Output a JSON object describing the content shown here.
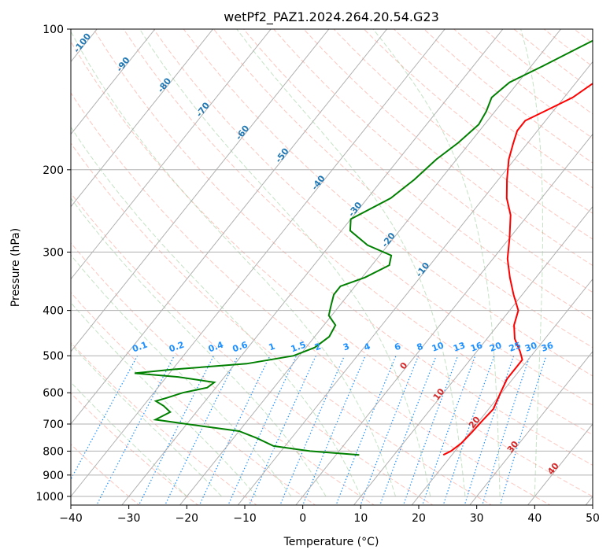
{
  "chart_data": {
    "type": "skew-t",
    "title": "wetPf2_PAZ1.2024.264.20.54.G23",
    "xlabel": "Temperature (°C)",
    "ylabel": "Pressure (hPa)",
    "xlim": [
      -40,
      50
    ],
    "ylim": [
      1050,
      100
    ],
    "y_scale": "log",
    "grid": true,
    "x_ticks": [
      -40,
      -30,
      -20,
      -10,
      0,
      10,
      20,
      30,
      40,
      50
    ],
    "x_tick_labels": [
      "−40",
      "−30",
      "−20",
      "−10",
      "0",
      "10",
      "20",
      "30",
      "40",
      "50"
    ],
    "y_ticks": [
      100,
      200,
      300,
      400,
      500,
      600,
      700,
      800,
      900,
      1000
    ],
    "y_tick_labels": [
      "100",
      "200",
      "300",
      "400",
      "500",
      "600",
      "700",
      "800",
      "900",
      "1000"
    ],
    "colors": {
      "temperature": "#ff0000",
      "dewpoint": "#008000",
      "isotherm_labels": "#1f77b4",
      "mixing_ratio": "#1e90ff",
      "dry_adiabat": "#fa8072",
      "moist_adiabat": "#7fbf7f",
      "grid": "#b0b0b0",
      "isotherm_labels_warm": "#d62728"
    },
    "isotherm_labels_cold": [
      "-100",
      "-90",
      "-80",
      "-70",
      "-60",
      "-50",
      "-40",
      "-30",
      "-20",
      "-10"
    ],
    "isotherm_labels_warm": [
      "0",
      "10",
      "20",
      "30",
      "40"
    ],
    "mixing_ratio_labels": [
      "0.1",
      "0.2",
      "0.4",
      "0.6",
      "1",
      "1.5",
      "2",
      "3",
      "4",
      "6",
      "8",
      "10",
      "13",
      "16",
      "20",
      "25",
      "30",
      "36"
    ],
    "series": [
      {
        "name": "Temperature",
        "points": [
          {
            "p": 100,
            "t": 1.5
          },
          {
            "p": 108,
            "t": -2
          },
          {
            "p": 115,
            "t": -4.5
          },
          {
            "p": 125,
            "t": -6
          },
          {
            "p": 140,
            "t": -8.5
          },
          {
            "p": 150,
            "t": -11.5
          },
          {
            "p": 157,
            "t": -13.5
          },
          {
            "p": 165,
            "t": -13.5
          },
          {
            "p": 175,
            "t": -12.5
          },
          {
            "p": 190,
            "t": -11
          },
          {
            "p": 210,
            "t": -8.5
          },
          {
            "p": 230,
            "t": -6
          },
          {
            "p": 250,
            "t": -3
          },
          {
            "p": 280,
            "t": 0
          },
          {
            "p": 310,
            "t": 2.5
          },
          {
            "p": 340,
            "t": 5.5
          },
          {
            "p": 370,
            "t": 8.5
          },
          {
            "p": 400,
            "t": 11.5
          },
          {
            "p": 430,
            "t": 12.8
          },
          {
            "p": 460,
            "t": 14.8
          },
          {
            "p": 490,
            "t": 17.5
          },
          {
            "p": 510,
            "t": 19
          },
          {
            "p": 530,
            "t": 19
          },
          {
            "p": 560,
            "t": 19
          },
          {
            "p": 600,
            "t": 19.8
          },
          {
            "p": 650,
            "t": 20.8
          },
          {
            "p": 690,
            "t": 20.5
          },
          {
            "p": 730,
            "t": 20.3
          },
          {
            "p": 770,
            "t": 20
          },
          {
            "p": 800,
            "t": 19.3
          },
          {
            "p": 815,
            "t": 18.5
          }
        ]
      },
      {
        "name": "Dewpoint",
        "points": [
          {
            "p": 100,
            "t": -10.5
          },
          {
            "p": 110,
            "t": -14.5
          },
          {
            "p": 120,
            "t": -18
          },
          {
            "p": 130,
            "t": -21.5
          },
          {
            "p": 140,
            "t": -22.5
          },
          {
            "p": 150,
            "t": -21.5
          },
          {
            "p": 160,
            "t": -21
          },
          {
            "p": 175,
            "t": -22
          },
          {
            "p": 190,
            "t": -23.5
          },
          {
            "p": 210,
            "t": -24.5
          },
          {
            "p": 230,
            "t": -26
          },
          {
            "p": 255,
            "t": -30
          },
          {
            "p": 270,
            "t": -28.5
          },
          {
            "p": 290,
            "t": -23.5
          },
          {
            "p": 305,
            "t": -18
          },
          {
            "p": 320,
            "t": -17
          },
          {
            "p": 340,
            "t": -19.5
          },
          {
            "p": 355,
            "t": -22.5
          },
          {
            "p": 370,
            "t": -22.5
          },
          {
            "p": 390,
            "t": -21.5
          },
          {
            "p": 410,
            "t": -20.5
          },
          {
            "p": 430,
            "t": -18
          },
          {
            "p": 455,
            "t": -17.5
          },
          {
            "p": 480,
            "t": -18.5
          },
          {
            "p": 500,
            "t": -21
          },
          {
            "p": 520,
            "t": -28
          },
          {
            "p": 535,
            "t": -40
          },
          {
            "p": 545,
            "t": -46
          },
          {
            "p": 555,
            "t": -38
          },
          {
            "p": 570,
            "t": -31
          },
          {
            "p": 585,
            "t": -31.5
          },
          {
            "p": 600,
            "t": -35
          },
          {
            "p": 615,
            "t": -37
          },
          {
            "p": 625,
            "t": -38.5
          },
          {
            "p": 640,
            "t": -36.5
          },
          {
            "p": 660,
            "t": -34.5
          },
          {
            "p": 685,
            "t": -36
          },
          {
            "p": 700,
            "t": -30
          },
          {
            "p": 725,
            "t": -20
          },
          {
            "p": 750,
            "t": -16
          },
          {
            "p": 780,
            "t": -12
          },
          {
            "p": 800,
            "t": -5
          },
          {
            "p": 815,
            "t": 4
          }
        ]
      }
    ]
  }
}
